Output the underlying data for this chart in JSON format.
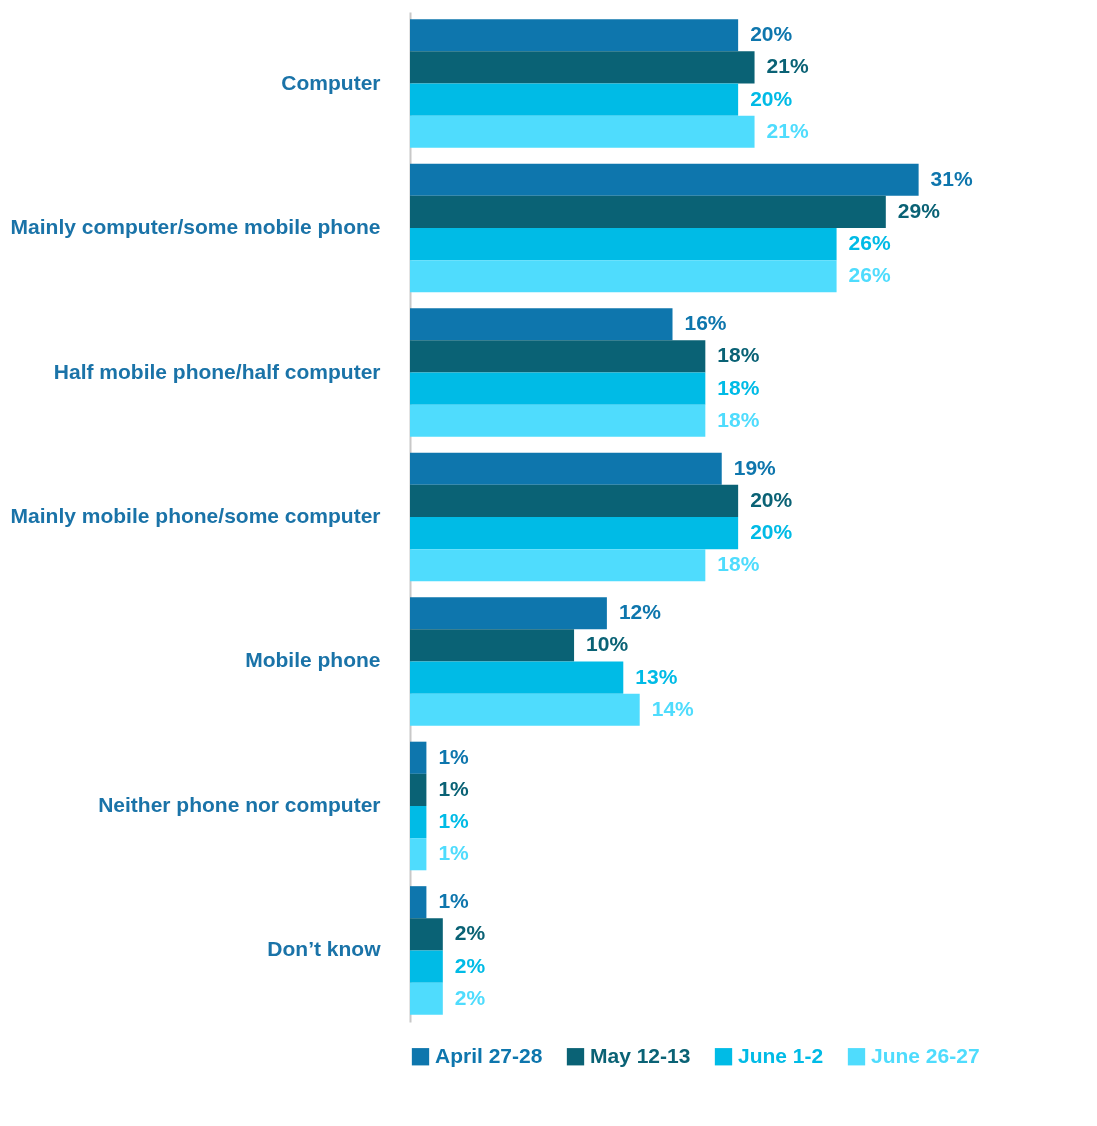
{
  "chart_data": {
    "type": "bar",
    "orientation": "horizontal",
    "legend": "bottom",
    "categories": [
      "Computer",
      "Mainly computer/some mobile phone",
      "Half mobile phone/half computer",
      "Mainly mobile phone/some computer",
      "Mobile phone",
      "Neither phone nor computer",
      "Don’t know"
    ],
    "series": [
      {
        "name": "April 27-28",
        "color": "#0e76ad",
        "values": [
          20,
          31,
          16,
          19,
          12,
          1,
          1
        ],
        "value_labels": [
          "20%",
          "31%",
          "16%",
          "19%",
          "12%",
          "1%",
          "1%"
        ]
      },
      {
        "name": "May 12-13",
        "color": "#0a6275",
        "values": [
          21,
          29,
          18,
          20,
          10,
          1,
          2
        ],
        "value_labels": [
          "21%",
          "29%",
          "18%",
          "20%",
          "10%",
          "1%",
          "2%"
        ]
      },
      {
        "name": "June 1-2",
        "color": "#00bbe6",
        "values": [
          20,
          26,
          18,
          20,
          13,
          1,
          2
        ],
        "value_labels": [
          "20%",
          "26%",
          "18%",
          "20%",
          "13%",
          "1%",
          "2%"
        ]
      },
      {
        "name": "June 26-27",
        "color": "#4fdcfd",
        "values": [
          21,
          26,
          18,
          18,
          14,
          1,
          2
        ],
        "value_labels": [
          "21%",
          "26%",
          "18%",
          "18%",
          "14%",
          "1%",
          "2%"
        ]
      }
    ]
  }
}
